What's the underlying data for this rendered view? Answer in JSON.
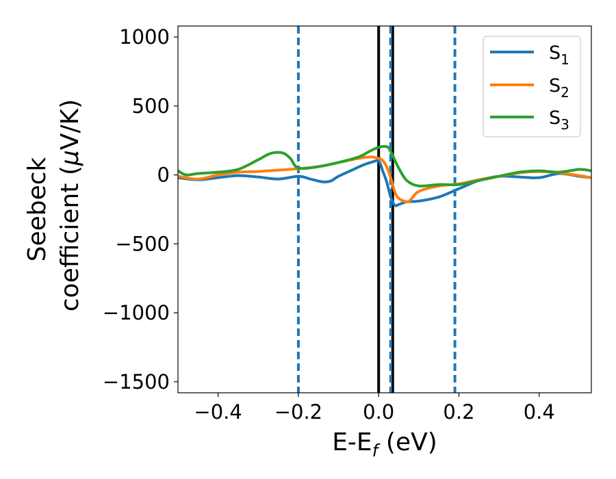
{
  "chart_data": {
    "type": "line",
    "xlabel": "E-E_f (eV)",
    "xlabel_parts": {
      "main": "E-E",
      "sub": "f",
      "unit": " (eV)"
    },
    "ylabel_line1": "Seebeck",
    "ylabel_line2_text": "coefficient  (",
    "ylabel_mu": "μ",
    "ylabel_unit": "V/K)",
    "xlim": [
      -0.5,
      0.53
    ],
    "ylim": [
      -1580,
      1080
    ],
    "xticks": [
      -0.4,
      -0.2,
      0.0,
      0.2,
      0.4
    ],
    "xtick_labels": [
      "−0.4",
      "−0.2",
      "0.0",
      "0.2",
      "0.4"
    ],
    "yticks": [
      1000,
      500,
      0,
      -500,
      -1000,
      -1500
    ],
    "ytick_labels": [
      "1000",
      "500",
      "0",
      "−500",
      "−1000",
      "−1500"
    ],
    "grid": false,
    "legend_position": "top-right",
    "vlines_solid": [
      0.0,
      0.035
    ],
    "vlines_dashed": [
      -0.2,
      0.03,
      0.19
    ],
    "vline_solid_color": "#000000",
    "vline_dashed_color": "#1f77b4",
    "series": [
      {
        "name": "S",
        "subscript": "1",
        "color": "#1f77b4",
        "x": [
          -0.5,
          -0.45,
          -0.4,
          -0.35,
          -0.3,
          -0.25,
          -0.2,
          -0.17,
          -0.14,
          -0.12,
          -0.1,
          -0.07,
          -0.04,
          -0.02,
          0.0,
          0.01,
          0.02,
          0.03,
          0.04,
          0.05,
          0.07,
          0.1,
          0.15,
          0.2,
          0.25,
          0.3,
          0.35,
          0.4,
          0.45,
          0.5,
          0.53
        ],
        "y": [
          -20,
          -35,
          -20,
          -5,
          -15,
          -30,
          -10,
          -30,
          -50,
          -45,
          -10,
          30,
          70,
          90,
          100,
          30,
          -50,
          -160,
          -220,
          -215,
          -195,
          -190,
          -160,
          -100,
          -40,
          -10,
          -15,
          -20,
          10,
          -10,
          -20
        ]
      },
      {
        "name": "S",
        "subscript": "2",
        "color": "#ff7f0e",
        "x": [
          -0.5,
          -0.45,
          -0.4,
          -0.35,
          -0.3,
          -0.25,
          -0.2,
          -0.15,
          -0.1,
          -0.05,
          -0.02,
          0.0,
          0.01,
          0.02,
          0.03,
          0.04,
          0.05,
          0.07,
          0.08,
          0.1,
          0.15,
          0.2,
          0.25,
          0.3,
          0.35,
          0.4,
          0.45,
          0.5,
          0.53
        ],
        "y": [
          -10,
          -30,
          0,
          20,
          25,
          35,
          45,
          60,
          90,
          120,
          130,
          120,
          105,
          60,
          -20,
          -120,
          -170,
          -195,
          -180,
          -120,
          -80,
          -65,
          -35,
          -10,
          15,
          25,
          15,
          -5,
          -20
        ]
      },
      {
        "name": "S",
        "subscript": "3",
        "color": "#2ca02c",
        "x": [
          -0.5,
          -0.48,
          -0.45,
          -0.4,
          -0.35,
          -0.3,
          -0.27,
          -0.24,
          -0.22,
          -0.2,
          -0.15,
          -0.1,
          -0.05,
          -0.02,
          0.0,
          0.02,
          0.03,
          0.05,
          0.07,
          0.1,
          0.15,
          0.2,
          0.25,
          0.3,
          0.35,
          0.4,
          0.45,
          0.5,
          0.53
        ],
        "y": [
          30,
          0,
          10,
          20,
          40,
          110,
          155,
          160,
          120,
          50,
          60,
          90,
          130,
          175,
          200,
          205,
          170,
          50,
          -40,
          -80,
          -70,
          -70,
          -40,
          -10,
          20,
          30,
          20,
          40,
          30
        ]
      }
    ]
  }
}
